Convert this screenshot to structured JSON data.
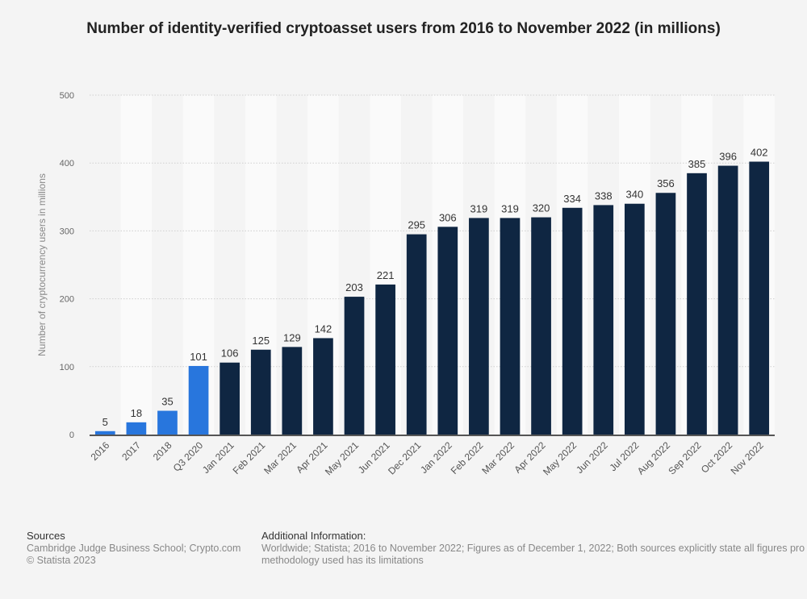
{
  "chart_data": {
    "type": "bar",
    "title": "Number of identity-verified cryptoasset users from 2016 to November 2022 (in millions)",
    "xlabel": "",
    "ylabel": "Number of cryptocurrency users in millions",
    "ylim": [
      0,
      500
    ],
    "yticks": [
      0,
      100,
      200,
      300,
      400,
      500
    ],
    "grid": true,
    "categories": [
      "2016",
      "2017",
      "2018",
      "Q3 2020",
      "Jan 2021",
      "Feb 2021",
      "Mar 2021",
      "Apr 2021",
      "May 2021",
      "Jun 2021",
      "Dec 2021",
      "Jan 2022",
      "Feb 2022",
      "Mar 2022",
      "Apr 2022",
      "May 2022",
      "Jun 2022",
      "Jul 2022",
      "Aug 2022",
      "Sep 2022",
      "Oct 2022",
      "Nov 2022"
    ],
    "values": [
      5,
      18,
      35,
      101,
      106,
      125,
      129,
      142,
      203,
      221,
      295,
      306,
      319,
      319,
      320,
      334,
      338,
      340,
      356,
      385,
      396,
      402
    ],
    "highlight_count": 4,
    "colors": {
      "highlight": "#2876dd",
      "default": "#0f2642"
    }
  },
  "footer": {
    "sources_heading": "Sources",
    "sources_text": "Cambridge Judge Business School; Crypto.com",
    "copyright": "© Statista 2023",
    "additional_heading": "Additional Information:",
    "additional_text_1": "Worldwide; Statista; 2016 to November 2022; Figures as of December 1, 2022; Both sources explicitly state all figures pro",
    "additional_text_2": "methodology used has its limitations"
  }
}
